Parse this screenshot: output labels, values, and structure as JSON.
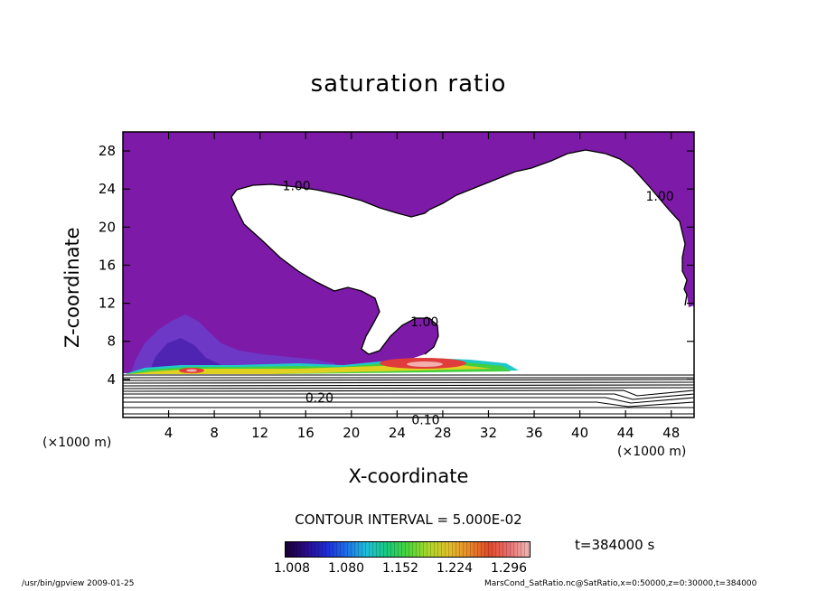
{
  "chart_data": {
    "type": "heatmap",
    "title": "saturation ratio",
    "xlabel": "X-coordinate",
    "ylabel": "Z-coordinate",
    "x_unit_left": "(×1000 m)",
    "x_unit_right": "(×1000 m)",
    "xlim": [
      0,
      50
    ],
    "ylim": [
      0,
      30
    ],
    "x_ticks": [
      4,
      8,
      12,
      16,
      20,
      24,
      28,
      32,
      36,
      40,
      44,
      48
    ],
    "y_ticks": [
      4,
      8,
      12,
      16,
      20,
      24,
      28
    ],
    "contour_labels": [
      {
        "text": "1.00",
        "x": 15.2,
        "y": 23.9
      },
      {
        "text": "1.00",
        "x": 47.0,
        "y": 22.8
      },
      {
        "text": "1.00",
        "x": 26.4,
        "y": 9.6
      },
      {
        "text": "0.20",
        "x": 17.2,
        "y": 1.6
      },
      {
        "text": "0.10",
        "x": 26.5,
        "y": -0.7
      }
    ],
    "contour_interval": "CONTOUR INTERVAL = 5.000E-02",
    "time_label": "t=384000 s",
    "colorbar": {
      "ticks": [
        "1.008",
        "1.080",
        "1.152",
        "1.224",
        "1.296"
      ],
      "colors": [
        "#1a0033",
        "#2a0a88",
        "#1e2bd6",
        "#1f6fe8",
        "#1ec0d8",
        "#18c97a",
        "#4bd43a",
        "#a8d82a",
        "#e0c02a",
        "#e88a2a",
        "#e24a2a",
        "#e87070",
        "#f4b8b8"
      ]
    },
    "colors": {
      "region_fill": "#7d1aa8",
      "plume_dark": "#4d22b0",
      "plume_mid": "#6a3cc8",
      "cyan": "#20c8c8",
      "green": "#40d040",
      "yellow": "#e0d020",
      "red": "#e03c3c",
      "pink": "#f4b0b0"
    }
  },
  "footer": {
    "left": "/usr/bin/gpview   2009-01-25",
    "right": "MarsCond_SatRatio.nc@SatRatio,x=0:50000,z=0:30000,t=384000"
  }
}
